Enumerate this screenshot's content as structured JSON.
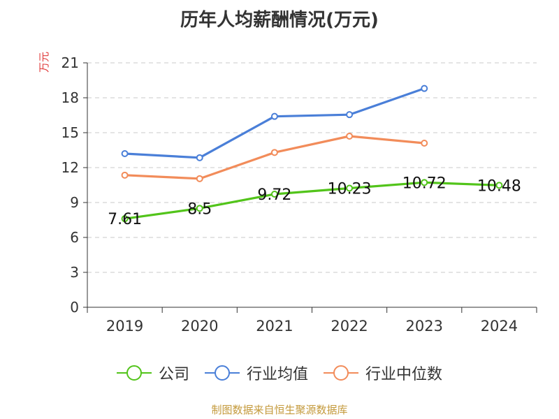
{
  "chart_data": {
    "type": "line",
    "title": "历年人均薪酬情况(万元)",
    "ylabel": "万元",
    "x": [
      "2019",
      "2020",
      "2021",
      "2022",
      "2023",
      "2024"
    ],
    "ylim": [
      0,
      21
    ],
    "yticks": [
      0,
      3,
      6,
      9,
      12,
      15,
      18,
      21
    ],
    "grid": true,
    "legend_position": "bottom",
    "series": [
      {
        "name": "公司",
        "color": "#52c41a",
        "values": [
          7.61,
          8.5,
          9.72,
          10.23,
          10.72,
          10.48
        ],
        "labels": [
          "7.61",
          "8.5",
          "9.72",
          "10.23",
          "10.72",
          "10.48"
        ]
      },
      {
        "name": "行业均值",
        "color": "#4a7fd8",
        "values": [
          13.2,
          12.85,
          16.4,
          16.55,
          18.8,
          null
        ]
      },
      {
        "name": "行业中位数",
        "color": "#f28c5a",
        "values": [
          11.35,
          11.05,
          13.3,
          14.7,
          14.1,
          null
        ]
      }
    ]
  },
  "source": "制图数据来自恒生聚源数据库"
}
